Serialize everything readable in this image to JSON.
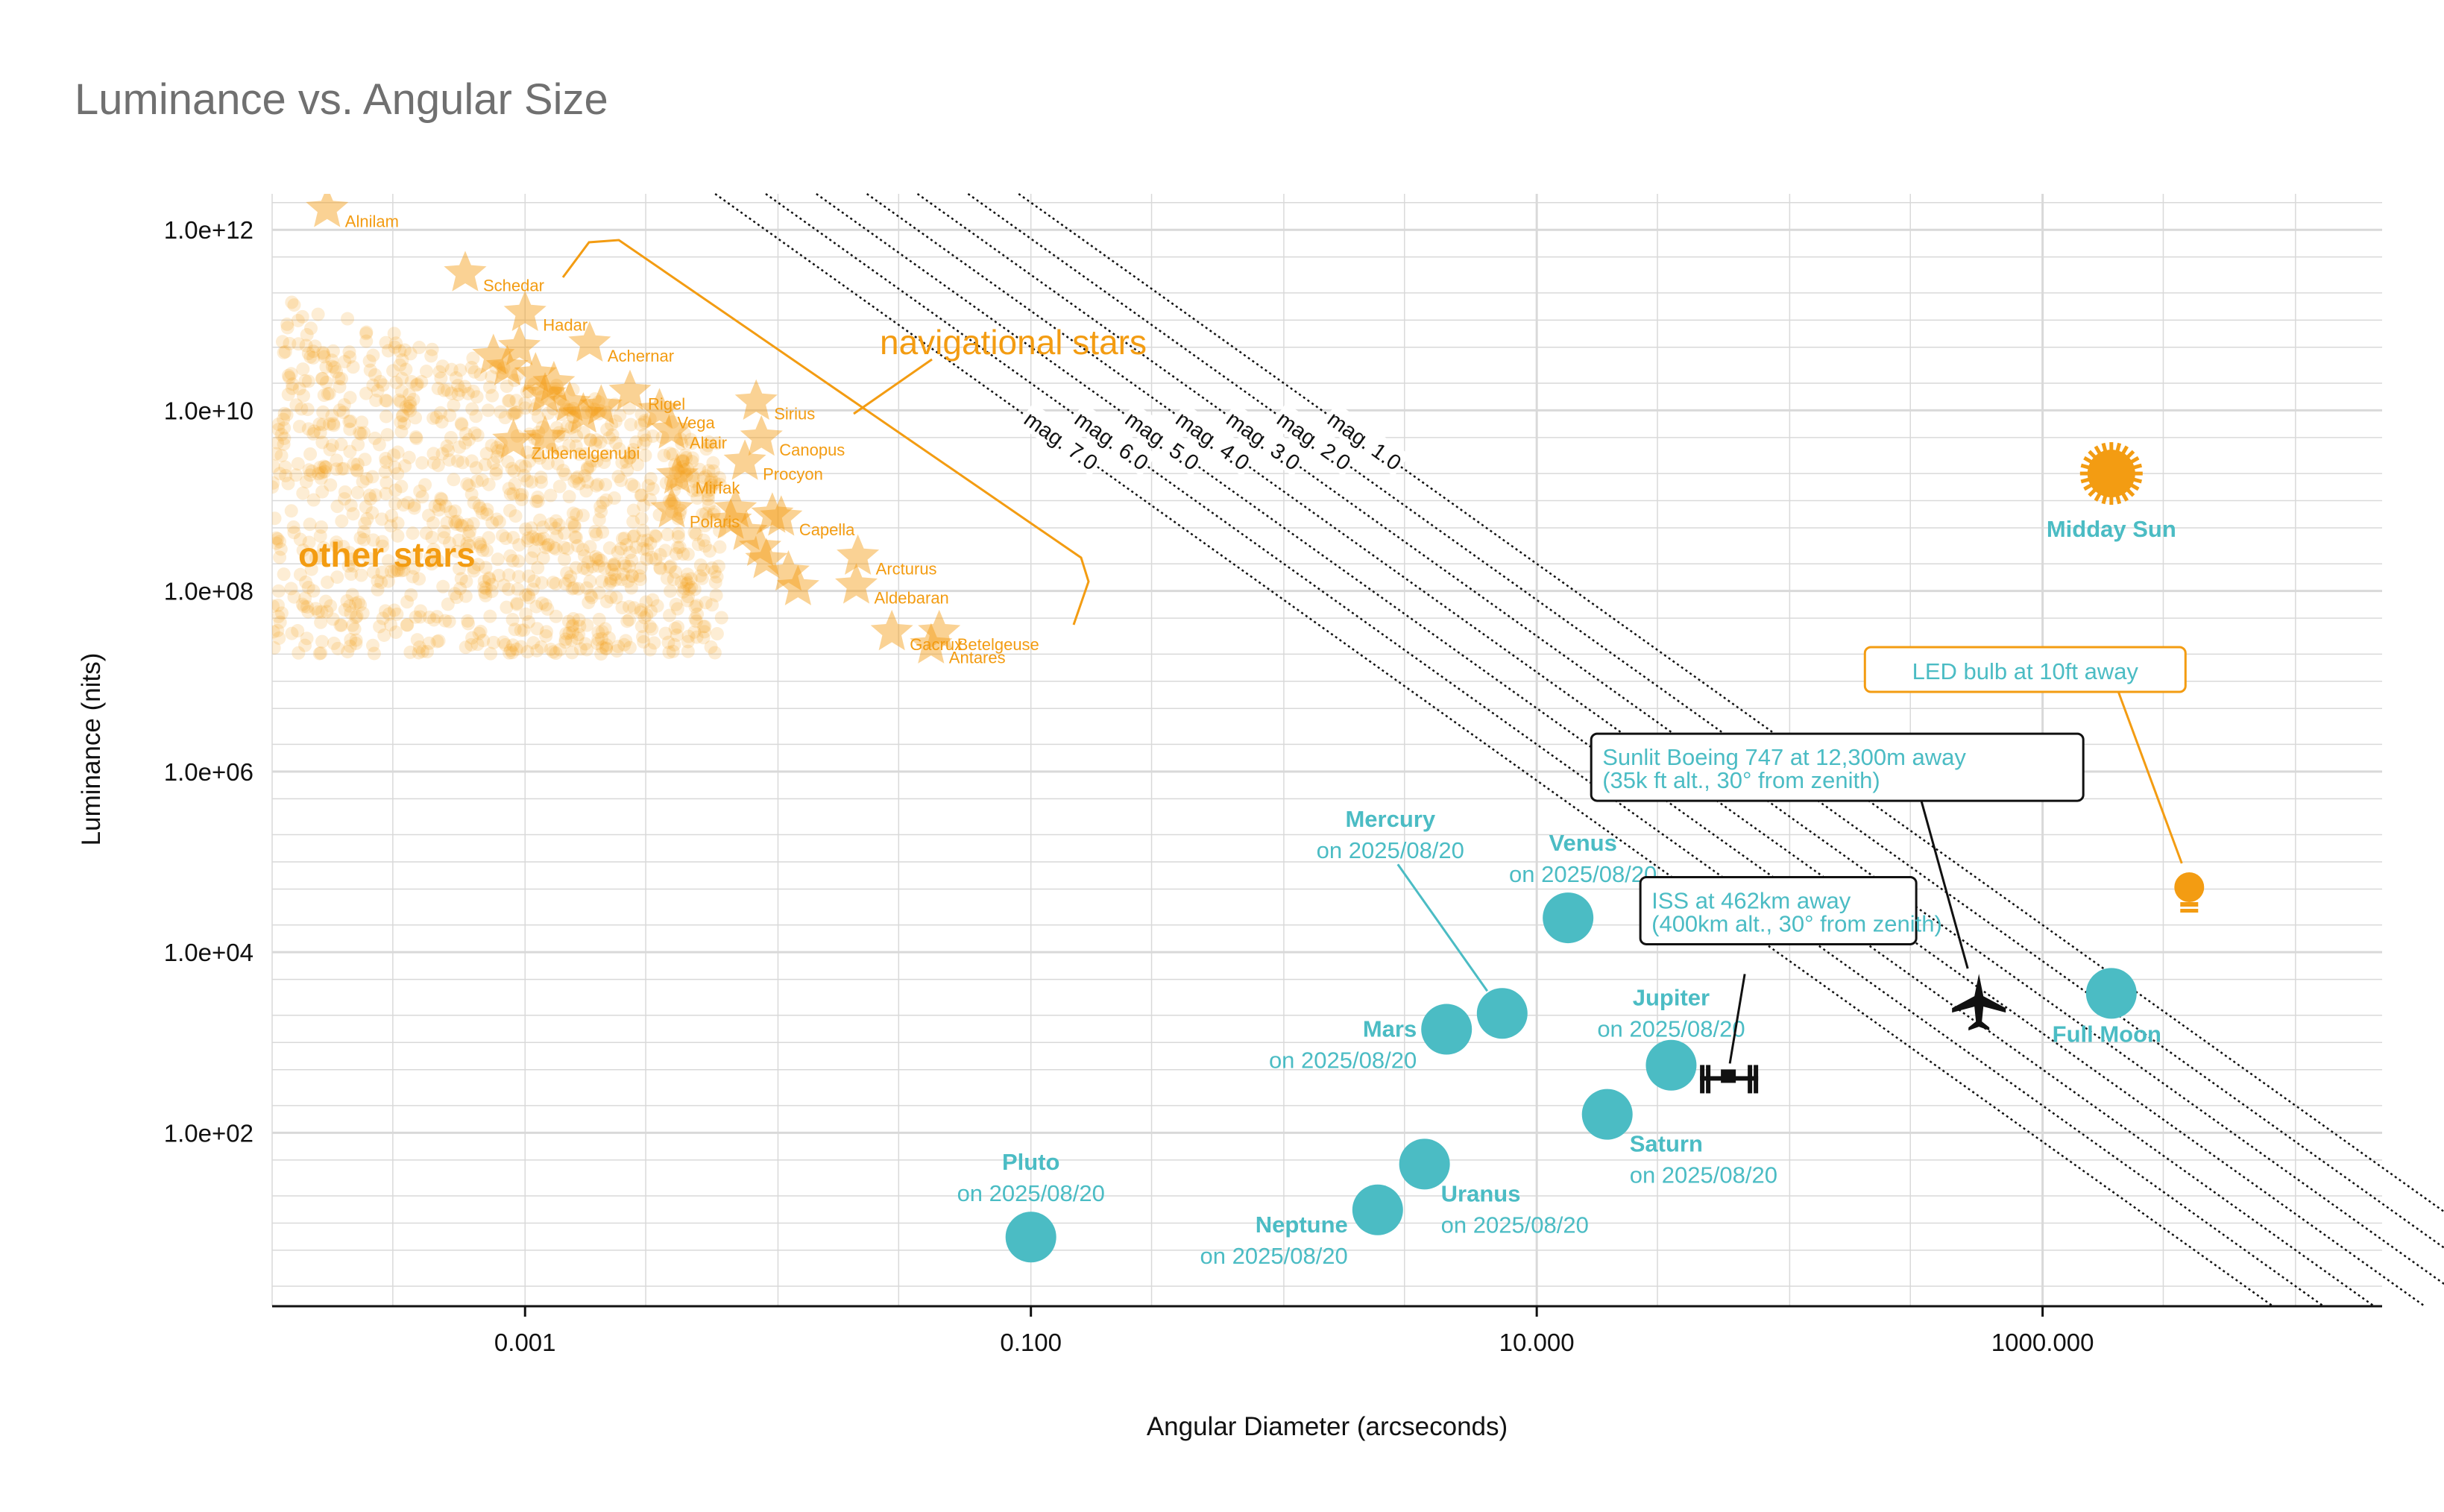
{
  "chart_data": {
    "type": "scatter",
    "title": "Luminance vs. Angular Size",
    "xlabel": "Angular Diameter (arcseconds)",
    "ylabel": "Luminance (nits)",
    "x_scale": "log10",
    "y_scale": "log10",
    "xlim": [
      0.0001,
      22000
    ],
    "ylim": [
      1.2,
      2500000000000.0
    ],
    "x_ticks": [
      {
        "value": 0.001,
        "label": "0.001"
      },
      {
        "value": 0.1,
        "label": "0.100"
      },
      {
        "value": 10,
        "label": "10.000"
      },
      {
        "value": 1000,
        "label": "1000.000"
      }
    ],
    "y_ticks": [
      {
        "value": 1000000000000.0,
        "label": "1.0e+12"
      },
      {
        "value": 10000000000.0,
        "label": "1.0e+10"
      },
      {
        "value": 100000000.0,
        "label": "1.0e+08"
      },
      {
        "value": 1000000.0,
        "label": "1.0e+06"
      },
      {
        "value": 10000.0,
        "label": "1.0e+04"
      },
      {
        "value": 100.0,
        "label": "1.0e+02"
      }
    ],
    "colors": {
      "stars": "#f39c12",
      "planets": "#4bbcc4",
      "lines": "#111111",
      "grid": "#d9d9d9"
    },
    "background_stars": {
      "count": 1100,
      "x_range": [
        0.0001,
        0.006
      ],
      "y_range": [
        20000000.0,
        200000000000.0
      ]
    },
    "other_stars_label": "other stars",
    "navigational_stars_label": "navigational stars",
    "navigational_stars": [
      {
        "name": "Alnilam",
        "x": 0.000165,
        "y": 1700000000000.0
      },
      {
        "name": "Schedar",
        "x": 0.00058,
        "y": 330000000000.0
      },
      {
        "name": "Hadar",
        "x": 0.001,
        "y": 120000000000.0
      },
      {
        "name": "Achernar",
        "x": 0.0018,
        "y": 55000000000.0
      },
      {
        "name": "Rigel",
        "x": 0.0026,
        "y": 16000000000.0
      },
      {
        "name": "Vega",
        "x": 0.0034,
        "y": 10000000000.0
      },
      {
        "name": "Sirius",
        "x": 0.0082,
        "y": 12500000000.0
      },
      {
        "name": "Altair",
        "x": 0.0038,
        "y": 6000000000.0
      },
      {
        "name": "Canopus",
        "x": 0.0086,
        "y": 5000000000.0
      },
      {
        "name": "Procyon",
        "x": 0.0074,
        "y": 2700000000.0
      },
      {
        "name": "Zubenelgenubi",
        "x": 0.0009,
        "y": 4600000000.0
      },
      {
        "name": "Mirfak",
        "x": 0.004,
        "y": 1900000000.0
      },
      {
        "name": "Polaris",
        "x": 0.0038,
        "y": 800000000.0
      },
      {
        "name": "Capella",
        "x": 0.0103,
        "y": 650000000.0
      },
      {
        "name": "Arcturus",
        "x": 0.0207,
        "y": 240000000.0
      },
      {
        "name": "Aldebaran",
        "x": 0.0204,
        "y": 115000000.0
      },
      {
        "name": "Gacrux",
        "x": 0.0282,
        "y": 35000000.0
      },
      {
        "name": "Antares",
        "x": 0.0403,
        "y": 25000000.0
      },
      {
        "name": "Betelgeuse",
        "x": 0.0434,
        "y": 35000000.0
      }
    ],
    "unlabeled_nav_stars": [
      {
        "x": 0.00075,
        "y": 40000000000.0
      },
      {
        "x": 0.00085,
        "y": 30000000000.0
      },
      {
        "x": 0.00095,
        "y": 50000000000.0
      },
      {
        "x": 0.0011,
        "y": 25000000000.0
      },
      {
        "x": 0.0012,
        "y": 15000000000.0
      },
      {
        "x": 0.0013,
        "y": 20000000000.0
      },
      {
        "x": 0.0015,
        "y": 12000000000.0
      },
      {
        "x": 0.0017,
        "y": 9000000000.0
      },
      {
        "x": 0.002,
        "y": 11000000000.0
      },
      {
        "x": 0.0012,
        "y": 5000000000.0
      },
      {
        "x": 0.0065,
        "y": 600000000.0
      },
      {
        "x": 0.0075,
        "y": 450000000.0
      },
      {
        "x": 0.0085,
        "y": 300000000.0
      },
      {
        "x": 0.009,
        "y": 220000000.0
      },
      {
        "x": 0.011,
        "y": 160000000.0
      },
      {
        "x": 0.012,
        "y": 110000000.0
      },
      {
        "x": 0.0095,
        "y": 700000000.0
      },
      {
        "x": 0.0068,
        "y": 800000000.0
      }
    ],
    "magnitude_lines": [
      {
        "label": "mag. 1.0",
        "mag": 1.0
      },
      {
        "label": "mag. 2.0",
        "mag": 2.0
      },
      {
        "label": "mag. 3.0",
        "mag": 3.0
      },
      {
        "label": "mag. 4.0",
        "mag": 4.0
      },
      {
        "label": "mag. 5.0",
        "mag": 5.0
      },
      {
        "label": "mag. 6.0",
        "mag": 6.0
      },
      {
        "label": "mag. 7.0",
        "mag": 7.0
      }
    ],
    "mag_line_ref": {
      "mag1_x": 1,
      "mag1_y": 20000000000.0,
      "slope": -2
    },
    "solar_system": [
      {
        "name": "Pluto",
        "date": "on 2025/08/20",
        "x": 0.1,
        "y": 7
      },
      {
        "name": "Neptune",
        "date": "on 2025/08/20",
        "x": 2.35,
        "y": 14
      },
      {
        "name": "Uranus",
        "date": "on 2025/08/20",
        "x": 3.6,
        "y": 45
      },
      {
        "name": "Mars",
        "date": "on 2025/08/20",
        "x": 4.4,
        "y": 1400
      },
      {
        "name": "Mercury",
        "date": "on 2025/08/20",
        "x": 7.3,
        "y": 2100
      },
      {
        "name": "Venus",
        "date": "on 2025/08/20",
        "x": 13.3,
        "y": 24000
      },
      {
        "name": "Saturn",
        "date": "on 2025/08/20",
        "x": 19.0,
        "y": 160
      },
      {
        "name": "Jupiter",
        "date": "on 2025/08/20",
        "x": 34.0,
        "y": 560
      },
      {
        "name": "Full Moon",
        "date": "",
        "x": 1870,
        "y": 3500
      }
    ],
    "sun": {
      "name": "Midday Sun",
      "x": 1870,
      "y": 2000000000.0
    },
    "led_bulb": {
      "name": "LED bulb at 10ft away",
      "x": 3800,
      "y": 45000.0
    },
    "iss": {
      "name": "ISS at 462km away",
      "detail": "(400km alt., 30° from zenith)",
      "x": 58,
      "y": 400
    },
    "boeing": {
      "name": "Sunlit Boeing 747 at 12,300m away",
      "detail": "(35k ft alt., 30° from zenith)",
      "x": 560,
      "y": 2800
    }
  }
}
